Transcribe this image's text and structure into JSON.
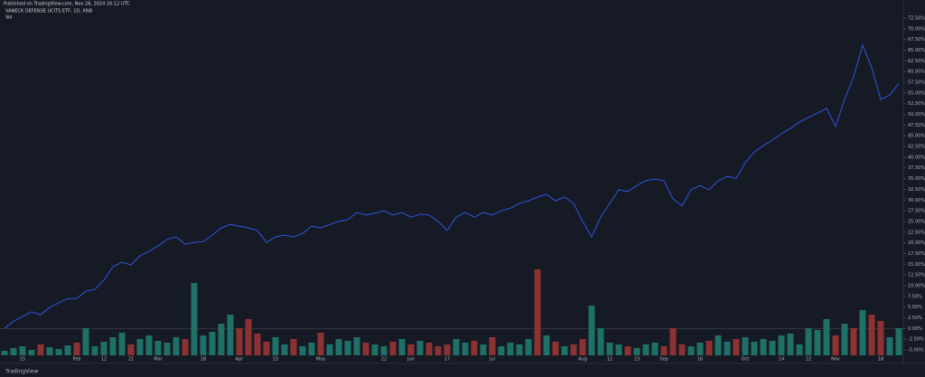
{
  "chart_data": {
    "type": "line",
    "header": "Published on TradingView.com, Nov 26, 2024 16:12 UTC",
    "footer": "TradingView",
    "categories": [
      null,
      null,
      "15",
      null,
      null,
      null,
      null,
      null,
      "Feb",
      null,
      null,
      "12",
      null,
      null,
      "21",
      null,
      null,
      "Mar",
      null,
      null,
      null,
      null,
      "18",
      null,
      null,
      null,
      "Apr",
      null,
      null,
      null,
      "15",
      null,
      null,
      null,
      null,
      "May",
      null,
      null,
      null,
      null,
      null,
      null,
      "22",
      null,
      null,
      "Jun",
      null,
      null,
      null,
      "17",
      null,
      null,
      null,
      null,
      "Jul",
      null,
      null,
      null,
      null,
      null,
      null,
      null,
      null,
      null,
      "Aug",
      null,
      null,
      "12",
      null,
      null,
      "23",
      null,
      null,
      "Sep",
      null,
      null,
      null,
      "16",
      null,
      null,
      null,
      null,
      "Oct",
      null,
      null,
      null,
      "14",
      null,
      null,
      "22",
      null,
      null,
      "Nov",
      null,
      null,
      null,
      null,
      "18",
      null,
      null
    ],
    "series": [
      {
        "name": "VANECK DEFENSE UCITS ETF, 1D, XNB",
        "color": "#2f56e0",
        "values": [
          0,
          1.7,
          2.8,
          3.9,
          3.2,
          4.9,
          6,
          7,
          7,
          8.7,
          9.1,
          11.3,
          14.4,
          15.5,
          14.8,
          17,
          18,
          19.3,
          20.8,
          21.4,
          19.7,
          20.1,
          20.3,
          21.8,
          23.5,
          24.3,
          23.9,
          23.5,
          22.9,
          20.1,
          21.4,
          21.8,
          21.4,
          22.2,
          23.9,
          23.5,
          24.3,
          25,
          25.4,
          27.1,
          26.5,
          26.9,
          27.5,
          26.5,
          27.1,
          26,
          26.7,
          26.5,
          25,
          22.9,
          26,
          27.1,
          26,
          27.1,
          26.5,
          27.5,
          28.1,
          29.2,
          29.8,
          30.7,
          31.3,
          29.8,
          30.7,
          29.2,
          25,
          21.4,
          26,
          29.2,
          32.4,
          32,
          33.4,
          34.5,
          34.9,
          34.5,
          30.3,
          28.6,
          32.4,
          33.4,
          32.4,
          34.5,
          35.5,
          35.1,
          38.7,
          41.2,
          42.7,
          44,
          45.5,
          46.7,
          48.2,
          49.3,
          50.3,
          51.4,
          47.2,
          53.5,
          58.8,
          66.2,
          60.9,
          53.5,
          54.5,
          57.3
        ]
      },
      {
        "name": "Vol",
        "type": "bar",
        "axis": "y2",
        "colors": [
          "#1f7066",
          "#1f7066",
          "#1f7066",
          "#1f7066",
          "#8c3232",
          "#1f7066",
          "#1f7066",
          "#1f7066",
          "#8c3232",
          "#1f7066",
          "#1f7066",
          "#1f7066",
          "#1f7066",
          "#1f7066",
          "#8c3232",
          "#1f7066",
          "#1f7066",
          "#1f7066",
          "#1f7066",
          "#1f7066",
          "#8c3232",
          "#1f7066",
          "#1f7066",
          "#1f7066",
          "#1f7066",
          "#1f7066",
          "#8c3232",
          "#8c3232",
          "#8c3232",
          "#8c3232",
          "#1f7066",
          "#1f7066",
          "#8c3232",
          "#1f7066",
          "#1f7066",
          "#8c3232",
          "#1f7066",
          "#1f7066",
          "#1f7066",
          "#1f7066",
          "#8c3232",
          "#1f7066",
          "#1f7066",
          "#8c3232",
          "#1f7066",
          "#8c3232",
          "#1f7066",
          "#8c3232",
          "#8c3232",
          "#8c3232",
          "#1f7066",
          "#1f7066",
          "#8c3232",
          "#1f7066",
          "#8c3232",
          "#1f7066",
          "#1f7066",
          "#1f7066",
          "#1f7066",
          "#8c3232",
          "#1f7066",
          "#8c3232",
          "#1f7066",
          "#8c3232",
          "#8c3232",
          "#1f7066",
          "#1f7066",
          "#1f7066",
          "#1f7066",
          "#8c3232",
          "#1f7066",
          "#1f7066",
          "#1f7066",
          "#8c3232",
          "#8c3232",
          "#8c3232",
          "#1f7066",
          "#1f7066",
          "#8c3232",
          "#1f7066",
          "#1f7066",
          "#8c3232",
          "#1f7066",
          "#1f7066",
          "#1f7066",
          "#1f7066",
          "#1f7066",
          "#1f7066",
          "#1f7066",
          "#1f7066",
          "#1f7066",
          "#1f7066",
          "#8c3232",
          "#1f7066",
          "#8c3232",
          "#1f7066",
          "#8c3232",
          "#8c3232",
          "#1f7066",
          "#1f7066"
        ],
        "values": [
          5,
          8,
          10,
          6,
          12,
          9,
          7,
          11,
          14,
          30,
          10,
          15,
          20,
          25,
          12,
          18,
          22,
          16,
          14,
          20,
          18,
          80,
          22,
          26,
          35,
          45,
          30,
          40,
          24,
          15,
          20,
          12,
          18,
          10,
          14,
          25,
          12,
          18,
          16,
          20,
          14,
          12,
          10,
          15,
          18,
          12,
          16,
          14,
          10,
          12,
          18,
          14,
          16,
          12,
          20,
          10,
          14,
          12,
          18,
          95,
          22,
          15,
          10,
          12,
          18,
          55,
          30,
          14,
          12,
          10,
          8,
          12,
          14,
          10,
          30,
          12,
          10,
          14,
          16,
          22,
          15,
          18,
          20,
          15,
          18,
          16,
          22,
          24,
          12,
          30,
          28,
          40,
          22,
          35,
          30,
          50,
          45,
          38,
          20,
          30
        ]
      }
    ],
    "ylim": [
      -5,
      72.5
    ],
    "yticks": [
      {
        "value": -5,
        "label": "-5.00%"
      },
      {
        "value": -2.5,
        "label": "-2.50%"
      },
      {
        "value": 0,
        "label": "0.00%"
      },
      {
        "value": 2.5,
        "label": "2.50%"
      },
      {
        "value": 5,
        "label": "5.00%"
      },
      {
        "value": 7.5,
        "label": "7.50%"
      },
      {
        "value": 10,
        "label": "10.00%"
      },
      {
        "value": 12.5,
        "label": "12.50%"
      },
      {
        "value": 15,
        "label": "15.00%"
      },
      {
        "value": 17.5,
        "label": "17.50%"
      },
      {
        "value": 20,
        "label": "20.00%"
      },
      {
        "value": 22.5,
        "label": "22.50%"
      },
      {
        "value": 25,
        "label": "25.00%"
      },
      {
        "value": 27.5,
        "label": "27.50%"
      },
      {
        "value": 30,
        "label": "30.00%"
      },
      {
        "value": 32.5,
        "label": "32.50%"
      },
      {
        "value": 35,
        "label": "35.00%"
      },
      {
        "value": 37.5,
        "label": "37.50%"
      },
      {
        "value": 40,
        "label": "40.00%"
      },
      {
        "value": 42.5,
        "label": "42.50%"
      },
      {
        "value": 45,
        "label": "45.00%"
      },
      {
        "value": 47.5,
        "label": "47.50%"
      },
      {
        "value": 50,
        "label": "50.00%"
      },
      {
        "value": 52.5,
        "label": "52.50%"
      },
      {
        "value": 55,
        "label": "55.00%"
      },
      {
        "value": 57.5,
        "label": "57.50%"
      },
      {
        "value": 60,
        "label": "60.00%"
      },
      {
        "value": 62.5,
        "label": "62.50%"
      },
      {
        "value": 65,
        "label": "65.00%"
      },
      {
        "value": 67.5,
        "label": "67.50%"
      },
      {
        "value": 70,
        "label": "70.00%"
      },
      {
        "value": 72.5,
        "label": "72.50%"
      }
    ],
    "y2lim": [
      0,
      100
    ]
  }
}
